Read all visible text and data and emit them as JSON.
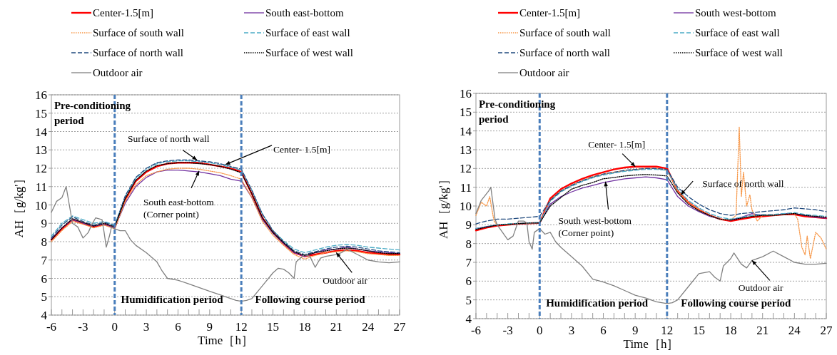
{
  "chart_data": [
    {
      "type": "line",
      "xlabel": "Time［h］",
      "ylabel": "AH［g/kg'］",
      "xlim": [
        -6,
        27
      ],
      "ylim": [
        4,
        16
      ],
      "xticks": [
        -6,
        {
          "value": -5,
          "label": null
        },
        {
          "value": -4,
          "label": null
        },
        -3,
        {
          "value": -2,
          "label": null
        },
        {
          "value": -1,
          "label": null
        },
        0,
        {
          "value": 1,
          "label": null
        },
        {
          "value": 2,
          "label": null
        },
        3,
        {
          "value": 4,
          "label": null
        },
        {
          "value": 5,
          "label": null
        },
        6,
        {
          "value": 7,
          "label": null
        },
        {
          "value": 8,
          "label": null
        },
        9,
        {
          "value": 10,
          "label": null
        },
        {
          "value": 11,
          "label": null
        },
        12,
        {
          "value": 13,
          "label": null
        },
        {
          "value": 14,
          "label": null
        },
        15,
        {
          "value": 16,
          "label": null
        },
        {
          "value": 17,
          "label": null
        },
        18,
        {
          "value": 19,
          "label": null
        },
        {
          "value": 20,
          "label": null
        },
        21,
        {
          "value": 22,
          "label": null
        },
        {
          "value": 23,
          "label": null
        },
        24,
        {
          "value": 25,
          "label": null
        },
        {
          "value": 26,
          "label": null
        },
        27
      ],
      "yticks": [
        4,
        5,
        6,
        7,
        8,
        9,
        10,
        11,
        12,
        13,
        14,
        15,
        16
      ],
      "grid": "y",
      "legend": "top",
      "x": [
        -6,
        -5,
        -4,
        -3,
        -2,
        -1,
        0,
        1,
        2,
        3,
        4,
        5,
        6,
        7,
        8,
        9,
        10,
        11,
        12,
        13,
        14,
        15,
        16,
        17,
        18,
        19,
        20,
        21,
        22,
        23,
        24,
        25,
        26,
        27
      ],
      "series": [
        {
          "name": "Center-1.5[m]",
          "color": "#ff0000",
          "line_style": "solid",
          "values": [
            8.1,
            8.7,
            9.2,
            9.0,
            8.8,
            8.95,
            8.75,
            10.3,
            11.3,
            11.8,
            12.1,
            12.25,
            12.3,
            12.3,
            12.3,
            12.2,
            12.1,
            12.0,
            11.8,
            10.6,
            9.3,
            8.5,
            7.9,
            7.4,
            7.2,
            7.3,
            7.4,
            7.5,
            7.55,
            7.5,
            7.4,
            7.35,
            7.3,
            7.3
          ]
        },
        {
          "name": "South east-bottom",
          "color": "#7030a0",
          "line_style": "solid",
          "values": [
            8.15,
            8.75,
            9.2,
            9.0,
            8.85,
            8.95,
            8.75,
            10.1,
            11.0,
            11.5,
            11.8,
            11.9,
            11.9,
            11.85,
            11.8,
            11.7,
            11.6,
            11.4,
            11.3,
            10.4,
            9.2,
            8.45,
            7.9,
            7.4,
            7.2,
            7.4,
            7.55,
            7.6,
            7.7,
            7.6,
            7.5,
            7.45,
            7.4,
            7.35
          ]
        },
        {
          "name": "Surface of south wall",
          "color": "#f79646",
          "line_style": "dotted",
          "values": [
            8.0,
            8.6,
            9.1,
            8.95,
            8.75,
            8.9,
            8.7,
            10.2,
            11.1,
            11.6,
            11.8,
            11.95,
            12.0,
            12.0,
            11.95,
            11.85,
            11.75,
            11.6,
            11.4,
            10.4,
            9.1,
            8.35,
            7.8,
            7.3,
            7.05,
            7.25,
            7.4,
            7.45,
            7.5,
            7.45,
            7.35,
            7.3,
            7.25,
            7.25
          ]
        },
        {
          "name": "Surface of east wall",
          "color": "#4bacc6",
          "line_style": "dashed",
          "values": [
            8.3,
            9.0,
            9.4,
            9.2,
            9.0,
            9.1,
            8.9,
            10.45,
            11.45,
            11.95,
            12.25,
            12.35,
            12.4,
            12.4,
            12.35,
            12.3,
            12.2,
            12.05,
            11.9,
            10.8,
            9.5,
            8.6,
            8.05,
            7.6,
            7.4,
            7.55,
            7.7,
            7.8,
            7.85,
            7.8,
            7.7,
            7.65,
            7.6,
            7.55
          ]
        },
        {
          "name": "Surface of north wall",
          "color": "#1f497d",
          "line_style": "dashed",
          "values": [
            8.2,
            8.9,
            9.35,
            9.1,
            8.9,
            9.05,
            8.85,
            10.5,
            11.5,
            12.0,
            12.3,
            12.4,
            12.45,
            12.45,
            12.4,
            12.35,
            12.25,
            12.1,
            11.95,
            10.8,
            9.5,
            8.6,
            8.0,
            7.5,
            7.3,
            7.45,
            7.6,
            7.7,
            7.75,
            7.7,
            7.6,
            7.5,
            7.45,
            7.4
          ]
        },
        {
          "name": "Surface of west wall",
          "color": "#000000",
          "line_style": "dotted",
          "values": [
            8.1,
            8.75,
            9.25,
            9.05,
            8.85,
            9.0,
            8.8,
            10.35,
            11.35,
            11.85,
            12.15,
            12.25,
            12.3,
            12.3,
            12.25,
            12.2,
            12.1,
            11.95,
            11.75,
            10.6,
            9.3,
            8.5,
            7.95,
            7.45,
            7.25,
            7.4,
            7.5,
            7.6,
            7.65,
            7.6,
            7.5,
            7.4,
            7.35,
            7.35
          ]
        },
        {
          "name": "Outdoor air",
          "color": "#808080",
          "line_style": "solid",
          "x": [
            -6,
            -5.5,
            -5,
            -4.6,
            -4.3,
            -4,
            -3.5,
            -3,
            -2.5,
            -2.2,
            -1.8,
            -1.2,
            -1,
            -0.8,
            -0.5,
            -0.3,
            0,
            0.5,
            1,
            1.5,
            2,
            3,
            4,
            4.5,
            5,
            6,
            7,
            8,
            9,
            10,
            11,
            11.5,
            12,
            12.5,
            13,
            14,
            15,
            15.5,
            16,
            16.5,
            17,
            17.2,
            18,
            18.5,
            19,
            19.5,
            20,
            21,
            21.5,
            22,
            23,
            24,
            25,
            26,
            27
          ],
          "values": [
            9.6,
            10.2,
            10.4,
            11.0,
            10.0,
            9.0,
            8.8,
            8.2,
            8.5,
            8.9,
            9.3,
            9.2,
            8.5,
            7.7,
            8.3,
            8.8,
            8.7,
            8.6,
            8.6,
            8.1,
            7.8,
            7.4,
            6.9,
            6.4,
            6.0,
            5.9,
            5.7,
            5.5,
            5.3,
            5.1,
            4.9,
            4.8,
            4.75,
            4.8,
            4.9,
            5.6,
            6.3,
            6.55,
            6.5,
            6.3,
            6.0,
            6.9,
            7.3,
            7.2,
            6.6,
            7.1,
            7.2,
            7.3,
            7.4,
            7.6,
            7.3,
            7.0,
            6.9,
            6.85,
            6.9
          ]
        }
      ],
      "ref_lines": [
        {
          "axis": "x",
          "value": 0,
          "color": "#4a7ebb",
          "line_style": "dashed"
        },
        {
          "axis": "x",
          "value": 12,
          "color": "#4a7ebb",
          "line_style": "dashed"
        }
      ],
      "annotations": [
        "Pre-conditioning period",
        "Humidification period",
        "Following course period",
        {
          "text": "Surface of north wall",
          "x": 7.8,
          "y": 12.45
        },
        {
          "text": "Center- 1.5[m]",
          "x": 10.5,
          "y": 12.2
        },
        {
          "text": "South east-bottom (Corner point)",
          "x": 8,
          "y": 11.85
        },
        {
          "text": "Outdoor air",
          "x": 21,
          "y": 7.4
        }
      ]
    },
    {
      "type": "line",
      "xlabel": "Time［h］",
      "ylabel": "AH［g/kg'］",
      "xlim": [
        -6,
        27
      ],
      "ylim": [
        4,
        16
      ],
      "xticks": [
        -6,
        {
          "value": -5,
          "label": null
        },
        {
          "value": -4,
          "label": null
        },
        -3,
        {
          "value": -2,
          "label": null
        },
        {
          "value": -1,
          "label": null
        },
        0,
        {
          "value": 1,
          "label": null
        },
        {
          "value": 2,
          "label": null
        },
        3,
        {
          "value": 4,
          "label": null
        },
        {
          "value": 5,
          "label": null
        },
        6,
        {
          "value": 7,
          "label": null
        },
        {
          "value": 8,
          "label": null
        },
        9,
        {
          "value": 10,
          "label": null
        },
        {
          "value": 11,
          "label": null
        },
        12,
        {
          "value": 13,
          "label": null
        },
        {
          "value": 14,
          "label": null
        },
        15,
        {
          "value": 16,
          "label": null
        },
        {
          "value": 17,
          "label": null
        },
        18,
        {
          "value": 19,
          "label": null
        },
        {
          "value": 20,
          "label": null
        },
        21,
        {
          "value": 22,
          "label": null
        },
        {
          "value": 23,
          "label": null
        },
        24,
        {
          "value": 25,
          "label": null
        },
        {
          "value": 26,
          "label": null
        },
        27
      ],
      "yticks": [
        4,
        5,
        6,
        7,
        8,
        9,
        10,
        11,
        12,
        13,
        14,
        15,
        16
      ],
      "grid": "y",
      "legend": "top",
      "x": [
        -6,
        -5,
        -4,
        -3,
        -2,
        -1,
        0,
        1,
        2,
        3,
        4,
        5,
        6,
        7,
        8,
        9,
        10,
        11,
        12,
        13,
        14,
        15,
        16,
        17,
        18,
        19,
        20,
        21,
        22,
        23,
        24,
        25,
        26,
        27
      ],
      "series": [
        {
          "name": "Center-1.5[m]",
          "color": "#ff0000",
          "line_style": "solid",
          "values": [
            8.7,
            8.85,
            8.95,
            9.0,
            9.05,
            9.08,
            9.1,
            10.4,
            10.9,
            11.2,
            11.45,
            11.65,
            11.8,
            11.95,
            12.05,
            12.1,
            12.1,
            12.1,
            12.0,
            10.8,
            10.2,
            9.8,
            9.5,
            9.3,
            9.2,
            9.3,
            9.4,
            9.45,
            9.5,
            9.55,
            9.55,
            9.45,
            9.4,
            9.35
          ]
        },
        {
          "name": "South west-bottom",
          "color": "#7030a0",
          "line_style": "solid",
          "values": [
            8.8,
            8.9,
            9.0,
            9.0,
            9.05,
            9.08,
            9.1,
            10.1,
            10.5,
            10.75,
            10.95,
            11.1,
            11.25,
            11.35,
            11.45,
            11.5,
            11.55,
            11.5,
            11.4,
            10.5,
            10.0,
            9.7,
            9.45,
            9.3,
            9.25,
            9.4,
            9.6,
            9.5,
            9.5,
            9.6,
            9.6,
            9.5,
            9.4,
            9.35
          ]
        },
        {
          "name": "Surface of south wall",
          "color": "#f79646",
          "line_style": "dotted",
          "x": [
            -6,
            -5.5,
            -5,
            -4.7,
            -4.3,
            -4,
            -3,
            -2,
            -1,
            0,
            1,
            2,
            3,
            4,
            5,
            6,
            7,
            8,
            9,
            10,
            11,
            12,
            13,
            14,
            15,
            16,
            17,
            18,
            18.5,
            18.8,
            19,
            19.2,
            19.5,
            19.8,
            20,
            20.5,
            21,
            22,
            23,
            24,
            24.3,
            24.7,
            25,
            25.2,
            25.5,
            26,
            26.5,
            27
          ],
          "values": [
            9.5,
            10.2,
            10.0,
            10.5,
            9.2,
            9.0,
            9.0,
            9.05,
            9.08,
            9.1,
            10.3,
            10.8,
            11.1,
            11.35,
            11.55,
            11.7,
            11.8,
            11.9,
            11.95,
            12.0,
            12.0,
            11.9,
            10.8,
            10.2,
            9.8,
            9.5,
            9.3,
            9.25,
            9.5,
            14.2,
            10.5,
            11.8,
            10.0,
            10.6,
            9.8,
            9.2,
            9.5,
            9.5,
            9.55,
            9.6,
            9.3,
            7.8,
            7.4,
            8.4,
            7.2,
            8.6,
            8.3,
            7.7
          ]
        },
        {
          "name": "Surface of east wall",
          "color": "#4bacc6",
          "line_style": "dashed",
          "values": [
            8.8,
            8.9,
            9.0,
            9.05,
            9.08,
            9.1,
            9.12,
            10.25,
            10.75,
            11.05,
            11.3,
            11.5,
            11.65,
            11.75,
            11.85,
            11.9,
            11.95,
            11.95,
            11.9,
            10.9,
            10.3,
            9.9,
            9.6,
            9.4,
            9.3,
            9.4,
            9.5,
            9.55,
            9.55,
            9.6,
            9.65,
            9.55,
            9.5,
            9.45
          ]
        },
        {
          "name": "Surface of north wall",
          "color": "#1f497d",
          "line_style": "dashed",
          "values": [
            9.05,
            9.2,
            9.3,
            9.3,
            9.35,
            9.4,
            9.45,
            10.3,
            10.8,
            11.1,
            11.35,
            11.55,
            11.7,
            11.8,
            11.9,
            11.95,
            12.0,
            12.0,
            11.95,
            11.0,
            10.5,
            10.1,
            9.8,
            9.6,
            9.5,
            9.6,
            9.65,
            9.7,
            9.75,
            9.8,
            9.9,
            9.85,
            9.8,
            9.7
          ]
        },
        {
          "name": "Surface of west wall",
          "color": "#000000",
          "line_style": "dotted",
          "values": [
            8.75,
            8.88,
            8.98,
            9.02,
            9.06,
            9.09,
            9.1,
            10.0,
            10.45,
            10.9,
            11.1,
            11.25,
            11.45,
            11.52,
            11.6,
            11.65,
            11.68,
            11.65,
            11.6,
            10.7,
            10.1,
            9.75,
            9.5,
            9.3,
            9.25,
            9.35,
            9.45,
            9.5,
            9.5,
            9.55,
            9.6,
            9.5,
            9.45,
            9.4
          ]
        },
        {
          "name": "Outdoor air",
          "color": "#808080",
          "line_style": "solid",
          "x": [
            -6,
            -5.5,
            -4.8,
            -4.6,
            -4.2,
            -4,
            -3.5,
            -3,
            -2.5,
            -2,
            -1.5,
            -1.2,
            -1,
            -0.7,
            -0.5,
            0,
            0.5,
            1,
            1.5,
            2,
            3,
            4,
            5,
            6,
            7,
            8,
            9,
            10,
            11,
            12,
            12.5,
            13,
            14,
            15,
            16,
            16.5,
            17,
            17.3,
            18,
            18.3,
            19,
            19.5,
            20,
            21,
            22,
            23,
            24,
            25,
            26,
            27
          ],
          "values": [
            9.6,
            10.3,
            10.8,
            11.0,
            9.3,
            9.0,
            8.6,
            8.2,
            8.4,
            9.2,
            9.2,
            9.1,
            8.1,
            7.7,
            8.6,
            8.8,
            8.5,
            8.6,
            8.1,
            7.8,
            7.3,
            6.8,
            6.1,
            5.95,
            5.75,
            5.5,
            5.25,
            5.1,
            4.9,
            4.8,
            4.85,
            5.0,
            5.7,
            6.4,
            6.5,
            6.2,
            6.0,
            6.8,
            7.2,
            7.5,
            6.9,
            6.7,
            7.1,
            7.3,
            7.6,
            7.3,
            7.0,
            6.9,
            6.9,
            6.95
          ]
        }
      ],
      "ref_lines": [
        {
          "axis": "x",
          "value": 0,
          "color": "#4a7ebb",
          "line_style": "dashed"
        },
        {
          "axis": "x",
          "value": 12,
          "color": "#4a7ebb",
          "line_style": "dashed"
        }
      ],
      "annotations": [
        "Pre-conditioning period",
        "Humidification period",
        "Following course period",
        {
          "text": "Surface of north wall",
          "x": 13.3,
          "y": 10.6
        },
        {
          "text": "Center- 1.5[m]",
          "x": 9,
          "y": 12.1
        },
        {
          "text": "South west-bottom (Corner point)",
          "x": 6.2,
          "y": 11.3
        },
        {
          "text": "Outdoor air",
          "x": 20,
          "y": 7.1
        }
      ]
    }
  ]
}
